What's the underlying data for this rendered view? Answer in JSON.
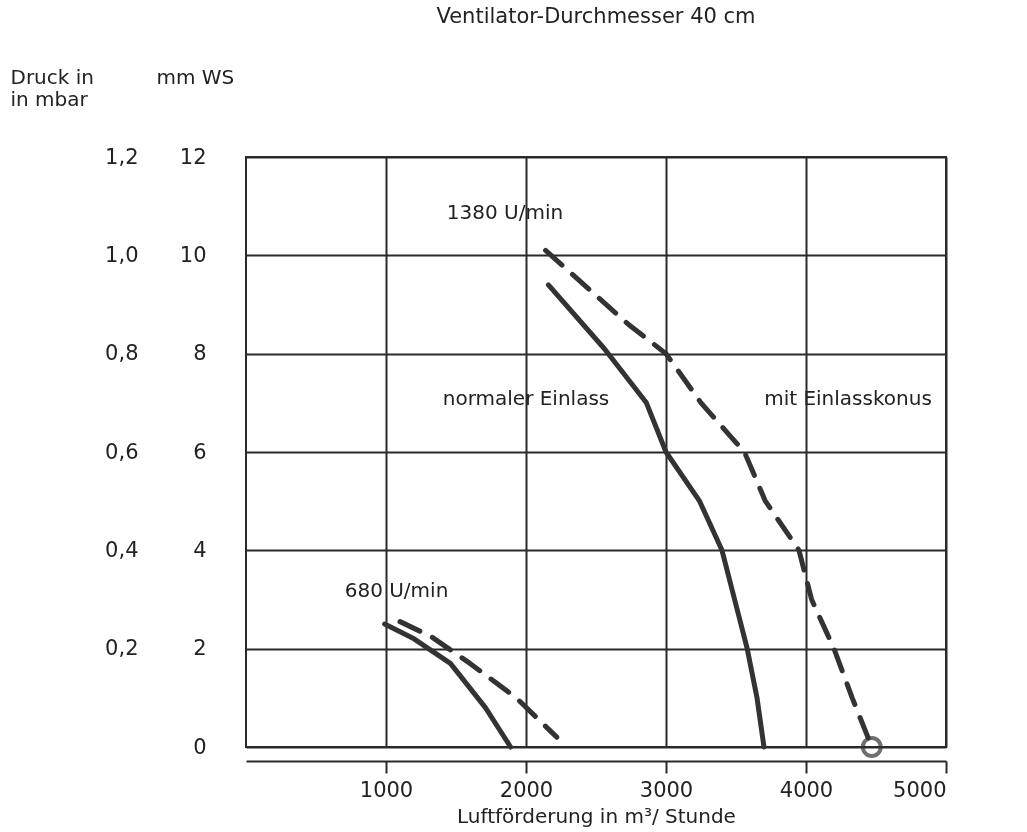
{
  "chart_data": {
    "type": "line",
    "title": "Ventilator-Durchmesser 40 cm",
    "xlabel": "Luftförderung in m³/ Stunde",
    "ylabel": "mm WS",
    "y2label": "Druck in\nin mbar",
    "xlim": [
      0,
      5000
    ],
    "xticks": [
      1000,
      2000,
      3000,
      4000,
      5000
    ],
    "ylim": [
      0,
      12
    ],
    "yticks": [
      0,
      2,
      4,
      6,
      8,
      10,
      12
    ],
    "y2lim": [
      0,
      1.2
    ],
    "y2ticks": [
      {
        "value": 0.2,
        "label": "0,2"
      },
      {
        "value": 0.4,
        "label": "0,4"
      },
      {
        "value": 0.6,
        "label": "0,6"
      },
      {
        "value": 0.8,
        "label": "0,8"
      },
      {
        "value": 1.0,
        "label": "1,0"
      },
      {
        "value": 1.2,
        "label": "1,2"
      }
    ],
    "grid": true,
    "annotations": [
      "1380 U/min",
      "680 U/min",
      "normaler Einlass",
      "mit Einlasskonus"
    ],
    "series": [
      {
        "color": "#333333",
        "line_style": "solid",
        "marker": "none",
        "x": [
          2160,
          2560,
          2860,
          3000,
          3240,
          3400,
          3490,
          3580,
          3650,
          3700
        ],
        "values": [
          9.4,
          8.1,
          7,
          6,
          5,
          4,
          3,
          2,
          1,
          0
        ]
      },
      {
        "color": "#333333",
        "line_style": "dashed",
        "marker": "none",
        "x": [
          2140,
          2730,
          3000,
          3250,
          3560,
          3710,
          3950,
          4040,
          4200,
          4330,
          4470
        ],
        "values": [
          10.1,
          8.6,
          8,
          7,
          6,
          5,
          4,
          3,
          2,
          1,
          0
        ]
      },
      {
        "color": "#333333",
        "line_style": "solid",
        "marker": "none",
        "x": [
          990,
          1200,
          1460,
          1710,
          1890
        ],
        "values": [
          2.5,
          2.2,
          1.7,
          0.8,
          0
        ]
      },
      {
        "color": "#333333",
        "line_style": "dashed",
        "marker": "none",
        "x": [
          1100,
          1320,
          1600,
          1930,
          2220
        ],
        "values": [
          2.55,
          2.25,
          1.7,
          1.0,
          0.2
        ]
      },
      {
        "type": "scatter",
        "color": "#333333",
        "marker": "circle",
        "x": [
          4470
        ],
        "values": [
          0
        ]
      }
    ]
  }
}
